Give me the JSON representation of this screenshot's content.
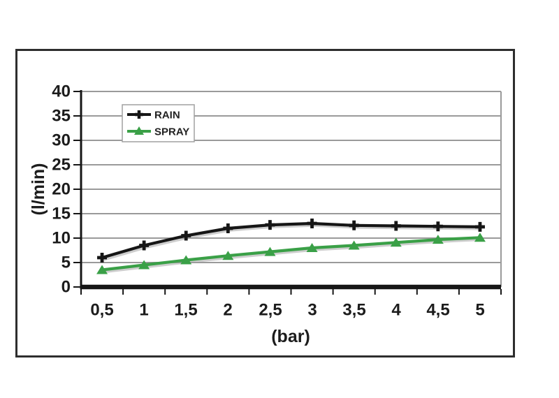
{
  "chart_data": {
    "type": "line",
    "x": [
      0.5,
      1,
      1.5,
      2,
      2.5,
      3,
      3.5,
      4,
      4.5,
      5
    ],
    "x_tick_labels": [
      "0,5",
      "1",
      "1,5",
      "2",
      "2,5",
      "3",
      "3,5",
      "4",
      "4,5",
      "5"
    ],
    "y_tick_labels": [
      "0",
      "5",
      "10",
      "15",
      "20",
      "25",
      "30",
      "35",
      "40"
    ],
    "xlabel": "(bar)",
    "ylabel": "(l/min)",
    "ylim": [
      0,
      40
    ],
    "y_step": 5,
    "grid": true,
    "legend_position": "top-left",
    "series": [
      {
        "name": "RAIN",
        "color": "#161616",
        "marker": "plus",
        "values": [
          6,
          8.5,
          10.5,
          12,
          12.7,
          13,
          12.6,
          12.5,
          12.4,
          12.3
        ]
      },
      {
        "name": "SPRAY",
        "color": "#3aa047",
        "marker": "triangle",
        "values": [
          3.5,
          4.5,
          5.5,
          6.4,
          7.2,
          8,
          8.5,
          9.1,
          9.7,
          10.1
        ]
      }
    ],
    "colors": {
      "grid": "#9a9a9a",
      "axis": "#161616",
      "text": "#1c1c1c",
      "legend_border": "#a0a0a0",
      "frame_border": "#2e2e2e",
      "shadow": "#9e9e9e",
      "background": "#ffffff"
    }
  }
}
